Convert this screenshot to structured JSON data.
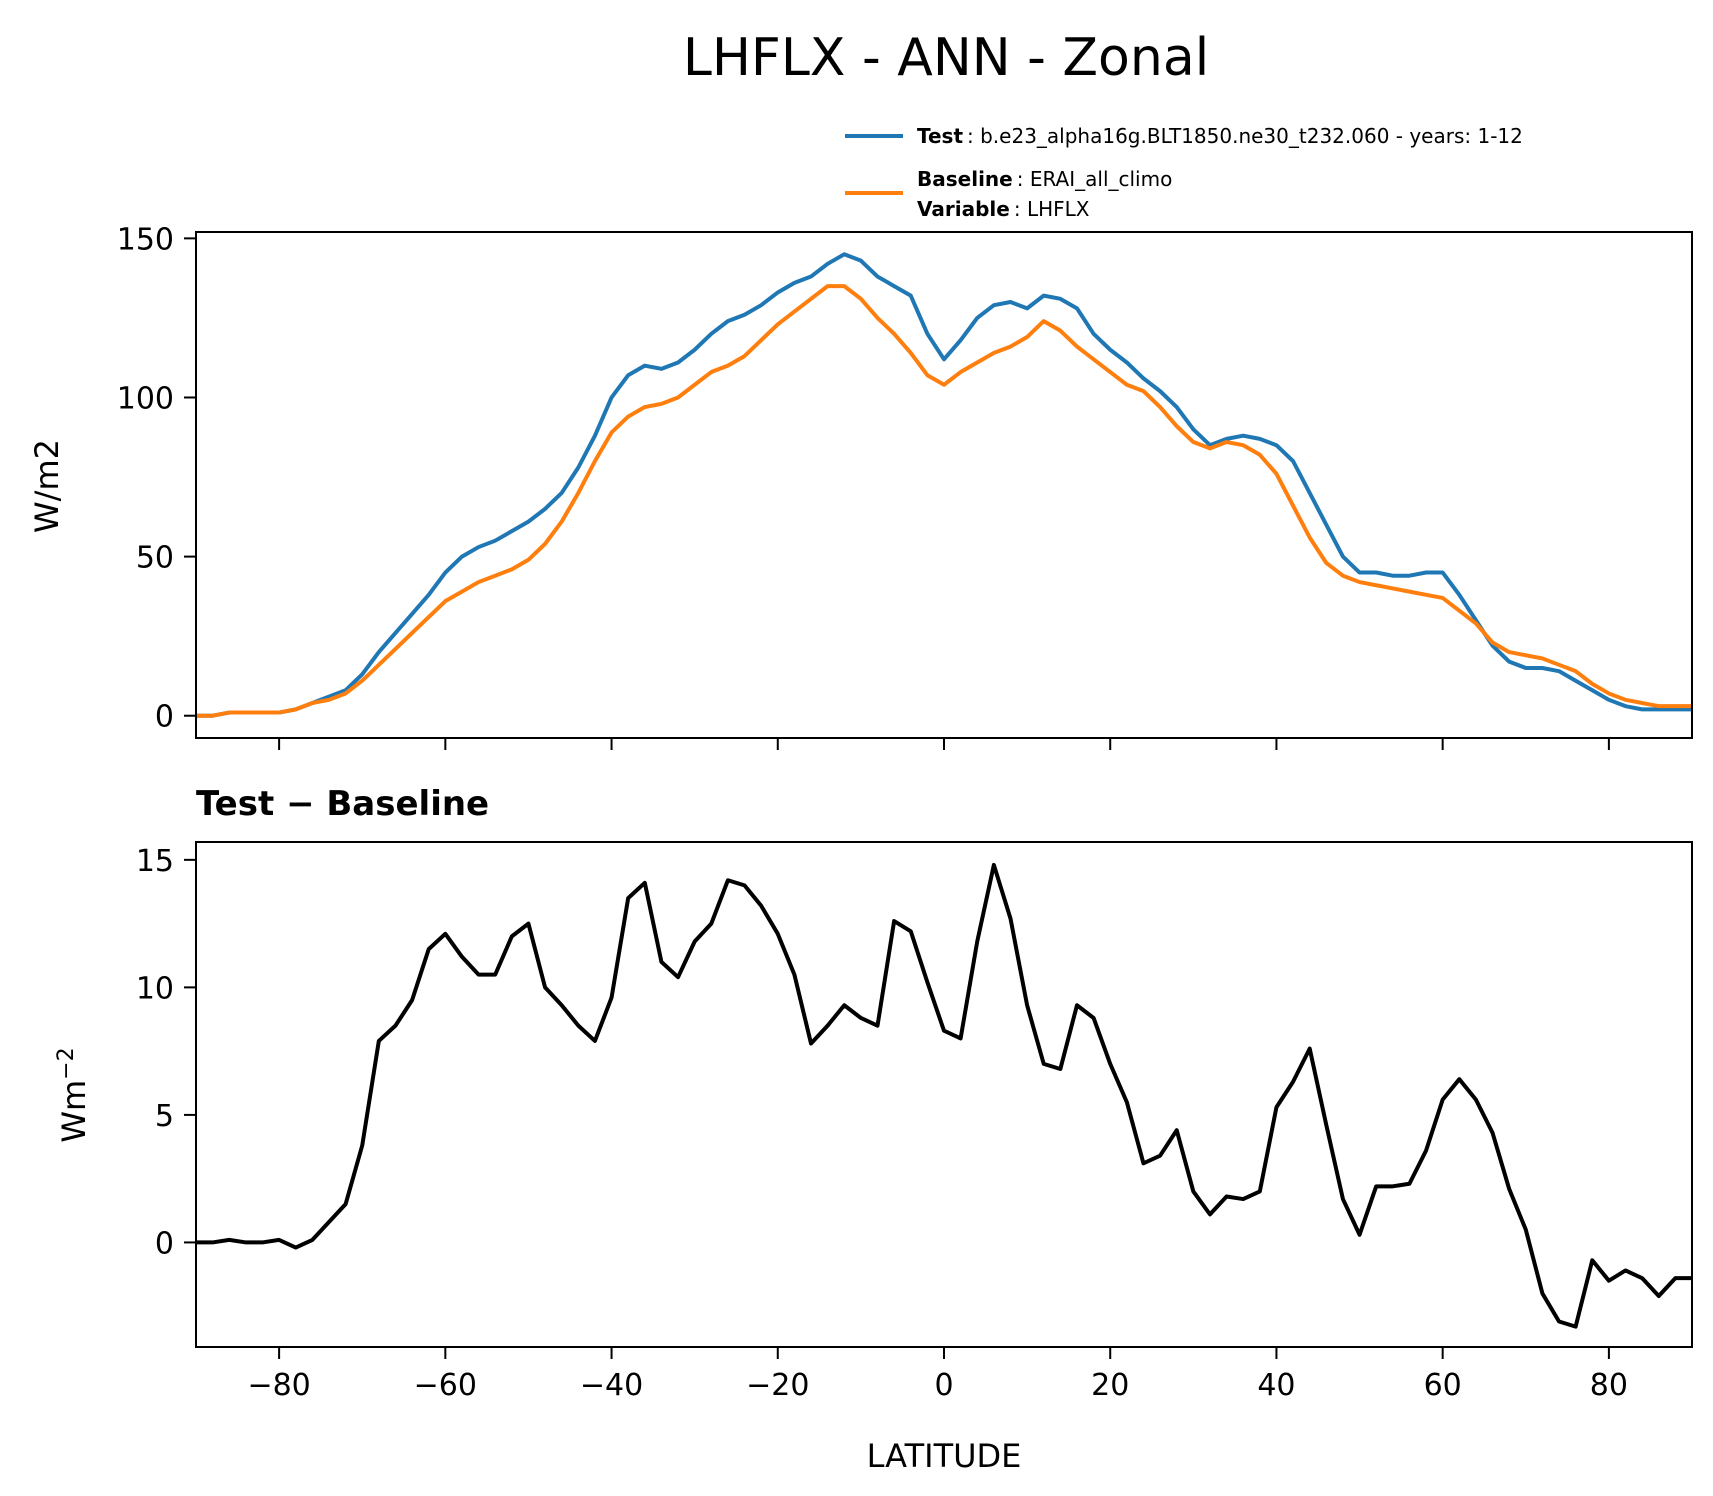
{
  "title": "LHFLX - ANN - Zonal",
  "chart_data": [
    {
      "type": "line",
      "panel": "top",
      "ylabel": "W/m2",
      "xlim": [
        -90,
        90
      ],
      "ylim": [
        -7,
        152
      ],
      "xticks": [
        -80,
        -60,
        -40,
        -20,
        0,
        20,
        40,
        60,
        80
      ],
      "yticks": [
        0,
        50,
        100,
        150
      ],
      "x": [
        -90,
        -88,
        -86,
        -84,
        -82,
        -80,
        -78,
        -76,
        -74,
        -72,
        -70,
        -68,
        -66,
        -64,
        -62,
        -60,
        -58,
        -56,
        -54,
        -52,
        -50,
        -48,
        -46,
        -44,
        -42,
        -40,
        -38,
        -36,
        -34,
        -32,
        -30,
        -28,
        -26,
        -24,
        -22,
        -20,
        -18,
        -16,
        -14,
        -12,
        -10,
        -8,
        -6,
        -4,
        -2,
        0,
        2,
        4,
        6,
        8,
        10,
        12,
        14,
        16,
        18,
        20,
        22,
        24,
        26,
        28,
        30,
        32,
        34,
        36,
        38,
        40,
        42,
        44,
        46,
        48,
        50,
        52,
        54,
        56,
        58,
        60,
        62,
        64,
        66,
        68,
        70,
        72,
        74,
        76,
        78,
        80,
        82,
        84,
        86,
        88,
        90
      ],
      "series": [
        {
          "name": "Test",
          "color": "#1f77b4",
          "values": [
            0,
            0,
            1,
            1,
            1,
            1,
            2,
            4,
            6,
            8,
            13,
            20,
            26,
            32,
            38,
            45,
            50,
            53,
            55,
            58,
            61,
            65,
            70,
            78,
            88,
            100,
            107,
            110,
            109,
            111,
            115,
            120,
            124,
            126,
            129,
            133,
            136,
            138,
            142,
            145,
            143,
            138,
            135,
            132,
            120,
            112,
            118,
            125,
            129,
            130,
            128,
            132,
            131,
            128,
            120,
            115,
            111,
            106,
            102,
            97,
            90,
            85,
            87,
            88,
            87,
            85,
            80,
            70,
            60,
            50,
            45,
            45,
            44,
            44,
            45,
            45,
            38,
            30,
            22,
            17,
            15,
            15,
            14,
            11,
            8,
            5,
            3,
            2,
            2,
            2,
            2
          ]
        },
        {
          "name": "Baseline",
          "color": "#ff7f0e",
          "values": [
            0,
            0,
            1,
            1,
            1,
            1,
            2,
            4,
            5,
            7,
            11,
            16,
            21,
            26,
            31,
            36,
            39,
            42,
            44,
            46,
            49,
            54,
            61,
            70,
            80,
            89,
            94,
            97,
            98,
            100,
            104,
            108,
            110,
            113,
            118,
            123,
            127,
            131,
            135,
            135,
            131,
            125,
            120,
            114,
            107,
            104,
            108,
            111,
            114,
            116,
            119,
            124,
            121,
            116,
            112,
            108,
            104,
            102,
            97,
            91,
            86,
            84,
            86,
            85,
            82,
            76,
            66,
            56,
            48,
            44,
            42,
            41,
            40,
            39,
            38,
            37,
            33,
            29,
            23,
            20,
            19,
            18,
            16,
            14,
            10,
            7,
            5,
            4,
            3,
            3,
            3
          ]
        }
      ],
      "legend": {
        "position": "upper-right-above",
        "entries": [
          {
            "key": "Test",
            "text": ": b.e23_alpha16g.BLT1850.ne30_t232.060 - years: 1-12",
            "color": "#1f77b4"
          },
          {
            "key": "Baseline",
            "text": ": ERAI_all_climo",
            "color": "#ff7f0e"
          },
          {
            "key": "Variable",
            "text": ": LHFLX"
          }
        ]
      }
    },
    {
      "type": "line",
      "panel": "bottom",
      "title": "Test − Baseline",
      "xlabel": "LATITUDE",
      "ylabel_main": "Wm",
      "ylabel_sup": "−2",
      "xlim": [
        -90,
        90
      ],
      "ylim": [
        -4.1,
        15.7
      ],
      "xticks": [
        -80,
        -60,
        -40,
        -20,
        0,
        20,
        40,
        60,
        80
      ],
      "yticks": [
        0,
        5,
        10,
        15
      ],
      "x": [
        -90,
        -88,
        -86,
        -84,
        -82,
        -80,
        -78,
        -76,
        -74,
        -72,
        -70,
        -68,
        -66,
        -64,
        -62,
        -60,
        -58,
        -56,
        -54,
        -52,
        -50,
        -48,
        -46,
        -44,
        -42,
        -40,
        -38,
        -36,
        -34,
        -32,
        -30,
        -28,
        -26,
        -24,
        -22,
        -20,
        -18,
        -16,
        -14,
        -12,
        -10,
        -8,
        -6,
        -4,
        -2,
        0,
        2,
        4,
        6,
        8,
        10,
        12,
        14,
        16,
        18,
        20,
        22,
        24,
        26,
        28,
        30,
        32,
        34,
        36,
        38,
        40,
        42,
        44,
        46,
        48,
        50,
        52,
        54,
        56,
        58,
        60,
        62,
        64,
        66,
        68,
        70,
        72,
        74,
        76,
        78,
        80,
        82,
        84,
        86,
        88,
        90
      ],
      "series": [
        {
          "name": "Test − Baseline",
          "color": "#000000",
          "values": [
            0,
            0,
            0.1,
            0,
            0,
            0.1,
            -0.2,
            0.1,
            0.8,
            1.5,
            3.8,
            7.9,
            8.5,
            9.5,
            11.5,
            12.1,
            11.2,
            10.5,
            10.5,
            12,
            12.5,
            10,
            9.3,
            8.5,
            7.9,
            9.6,
            13.5,
            14.1,
            11,
            10.4,
            11.8,
            12.5,
            14.2,
            14,
            13.2,
            12.1,
            10.5,
            7.8,
            8.5,
            9.3,
            8.8,
            8.5,
            12.6,
            12.2,
            10.2,
            8.3,
            8,
            11.8,
            14.8,
            12.7,
            9.3,
            7,
            6.8,
            9.3,
            8.8,
            7,
            5.5,
            3.1,
            3.4,
            4.4,
            2,
            1.1,
            1.8,
            1.7,
            2,
            5.3,
            6.3,
            7.6,
            4.6,
            1.7,
            0.3,
            2.2,
            2.2,
            2.3,
            3.6,
            5.6,
            6.4,
            5.6,
            4.3,
            2.1,
            0.5,
            -2,
            -3.1,
            -3.3,
            -0.7,
            -1.5,
            -1.1,
            -1.4,
            -2.1,
            -1.4,
            -1.4
          ]
        }
      ]
    }
  ]
}
